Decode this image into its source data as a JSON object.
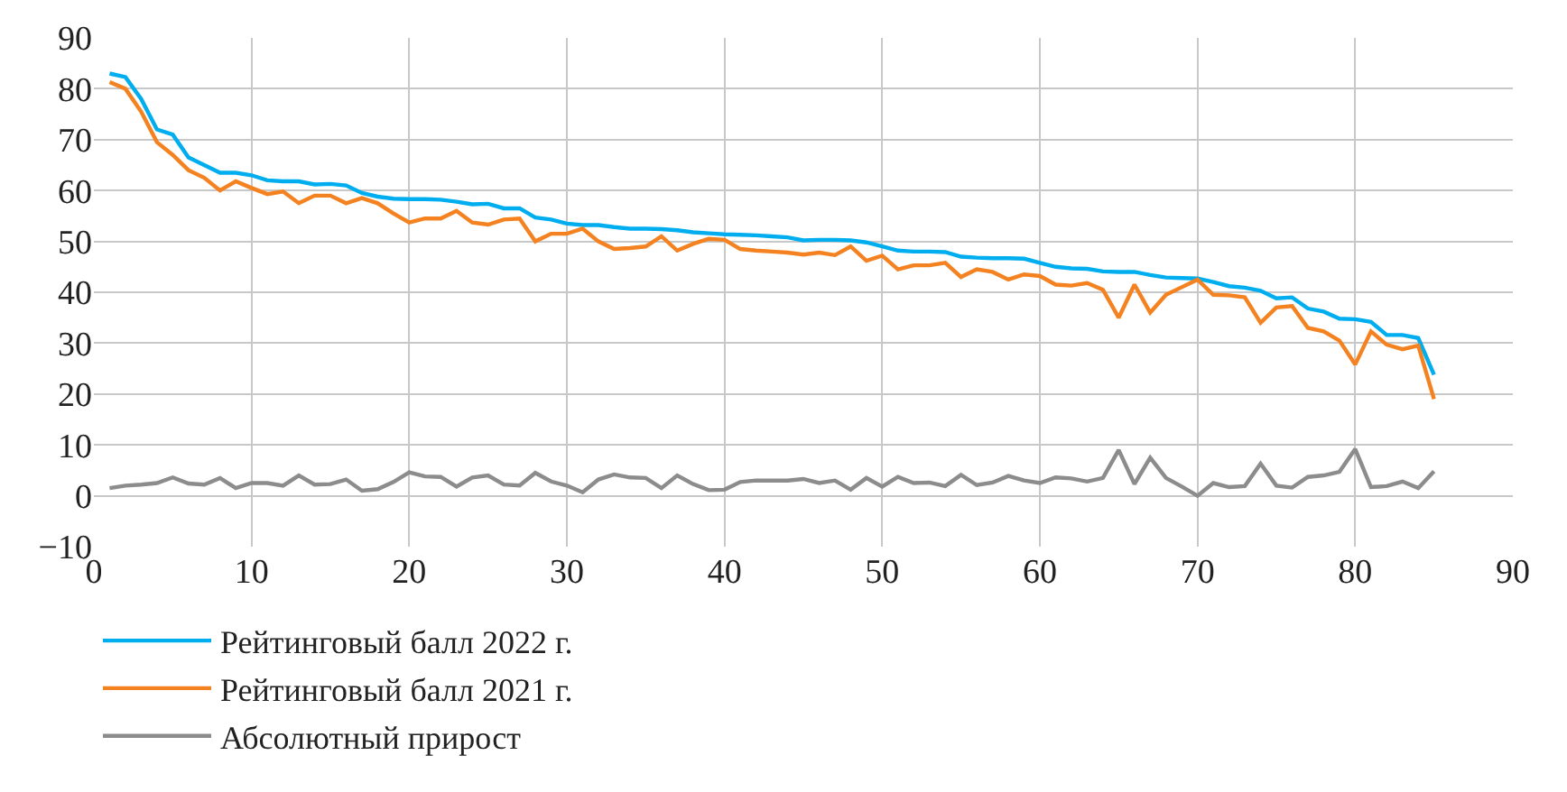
{
  "chart_data": {
    "type": "line",
    "xlim": [
      0,
      90
    ],
    "xticks": [
      0,
      10,
      20,
      30,
      40,
      50,
      60,
      70,
      80,
      90
    ],
    "ylim": [
      -10,
      90
    ],
    "yticks": [
      -10,
      0,
      10,
      20,
      30,
      40,
      50,
      60,
      70,
      80,
      90
    ],
    "grid": true,
    "legend": "bottom left",
    "marker": "none",
    "line_style": "solid",
    "x": [
      1,
      2,
      3,
      4,
      5,
      6,
      7,
      8,
      9,
      10,
      11,
      12,
      13,
      14,
      15,
      16,
      17,
      18,
      19,
      20,
      21,
      22,
      23,
      24,
      25,
      26,
      27,
      28,
      29,
      30,
      31,
      32,
      33,
      34,
      35,
      36,
      37,
      38,
      39,
      40,
      41,
      42,
      43,
      44,
      45,
      46,
      47,
      48,
      49,
      50,
      51,
      52,
      53,
      54,
      55,
      56,
      57,
      58,
      59,
      60,
      61,
      62,
      63,
      64,
      65,
      66,
      67,
      68,
      69,
      70,
      71,
      72,
      73,
      74,
      75,
      76,
      77,
      78,
      79,
      80,
      81,
      82,
      83,
      84,
      85
    ],
    "series": [
      {
        "name": "Рейтинговый балл 2022 г.",
        "color": "#00aeef",
        "values": [
          83,
          82.3,
          78,
          72,
          71,
          66.5,
          65,
          63.5,
          63.5,
          63,
          62,
          61.8,
          61.8,
          61.2,
          61.3,
          61,
          59.5,
          58.8,
          58.4,
          58.3,
          58.3,
          58.2,
          57.8,
          57.3,
          57.4,
          56.5,
          56.5,
          54.7,
          54.3,
          53.5,
          53.2,
          53.2,
          52.8,
          52.5,
          52.5,
          52.4,
          52.2,
          51.8,
          51.6,
          51.4,
          51.3,
          51.2,
          51,
          50.8,
          50.2,
          50.3,
          50.3,
          50.2,
          49.8,
          49,
          48.2,
          48,
          48,
          47.9,
          47,
          46.8,
          46.7,
          46.7,
          46.6,
          45.8,
          45,
          44.7,
          44.6,
          44.1,
          44,
          44,
          43.4,
          42.9,
          42.8,
          42.7,
          42,
          41.2,
          40.9,
          40.3,
          38.8,
          39,
          36.8,
          36.2,
          34.8,
          34.7,
          34.2,
          31.6,
          31.6,
          31,
          23.8
        ]
      },
      {
        "name": "Рейтинговый балл 2021 г.",
        "color": "#f58220",
        "values": [
          81.3,
          80,
          75.5,
          69.5,
          67,
          64,
          62.5,
          60,
          61.8,
          60.5,
          59.3,
          59.8,
          57.5,
          59,
          59,
          57.5,
          58.5,
          57.5,
          55.5,
          53.7,
          54.5,
          54.5,
          56,
          53.7,
          53.3,
          54.3,
          54.5,
          50,
          51.5,
          51.5,
          52.5,
          50,
          48.5,
          48.7,
          49,
          51,
          48.2,
          49.5,
          50.5,
          50.3,
          48.5,
          48.2,
          48,
          47.8,
          47.4,
          47.8,
          47.3,
          49,
          46.2,
          47.2,
          44.5,
          45.3,
          45.3,
          45.8,
          43,
          44.5,
          44,
          42.5,
          43.5,
          43.2,
          41.5,
          41.3,
          41.8,
          40.5,
          35,
          41.5,
          36,
          39.5,
          41,
          42.5,
          39.5,
          39.4,
          39,
          34,
          37,
          37.3,
          33,
          32.3,
          30.5,
          25.8,
          32.3,
          29.7,
          28.8,
          29.5,
          19
        ]
      },
      {
        "name": "Абсолютный прирост",
        "color": "#8c8c8c",
        "values": [
          1.5,
          2,
          2.2,
          2.5,
          3.6,
          2.4,
          2.2,
          3.5,
          1.5,
          2.5,
          2.5,
          2,
          4,
          2.2,
          2.3,
          3.2,
          1,
          1.3,
          2.7,
          4.6,
          3.8,
          3.7,
          1.8,
          3.6,
          4,
          2.2,
          2,
          4.5,
          2.8,
          2,
          0.7,
          3.2,
          4.2,
          3.6,
          3.5,
          1.5,
          4,
          2.3,
          1.1,
          1.2,
          2.7,
          3,
          3,
          3,
          3.3,
          2.5,
          3,
          1.2,
          3.5,
          1.8,
          3.7,
          2.5,
          2.6,
          1.9,
          4.1,
          2.1,
          2.6,
          3.9,
          3,
          2.5,
          3.6,
          3.4,
          2.8,
          3.5,
          9,
          2.3,
          7.5,
          3.5,
          1.8,
          0,
          2.5,
          1.7,
          1.9,
          6.3,
          2,
          1.6,
          3.7,
          4,
          4.7,
          9.2,
          1.7,
          1.9,
          2.8,
          1.5,
          4.8
        ]
      }
    ]
  }
}
